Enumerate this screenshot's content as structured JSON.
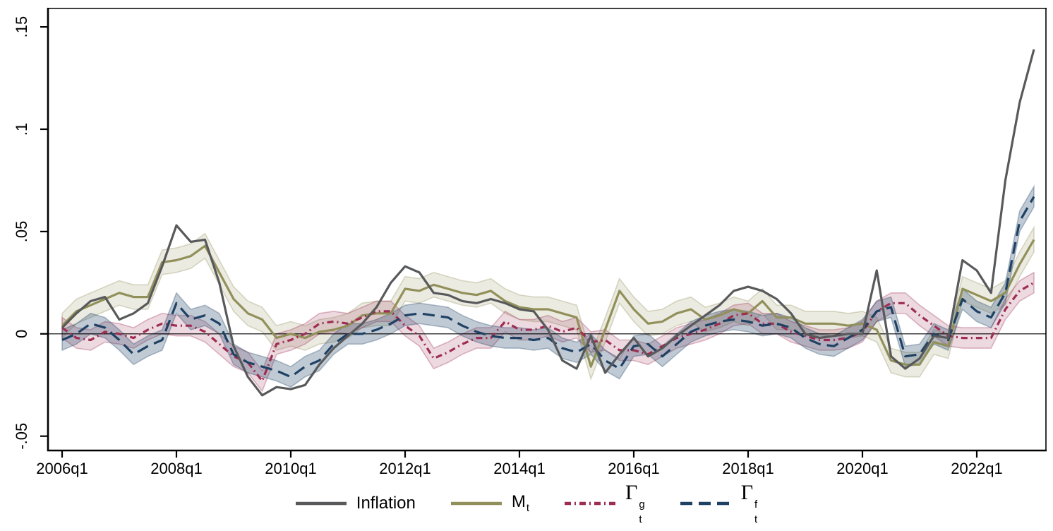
{
  "figure": {
    "background": "#ffffff",
    "border_color": "#000000",
    "zero_line_color": "#000000"
  },
  "chart_data": {
    "type": "line",
    "title": "",
    "xlabel": "",
    "ylabel": "",
    "x_unit": "quarterly",
    "x_start": "2006q1",
    "x_end": "2023q1",
    "x_ticks": [
      {
        "label": "2006q1",
        "q": 0
      },
      {
        "label": "2008q1",
        "q": 8
      },
      {
        "label": "2010q1",
        "q": 16
      },
      {
        "label": "2012q1",
        "q": 24
      },
      {
        "label": "2014q1",
        "q": 32
      },
      {
        "label": "2016q1",
        "q": 40
      },
      {
        "label": "2018q1",
        "q": 48
      },
      {
        "label": "2020q1",
        "q": 56
      },
      {
        "label": "2022q1",
        "q": 64
      }
    ],
    "y_ticks": [
      {
        "value": -0.05,
        "label": "-.05"
      },
      {
        "value": 0,
        "label": "0"
      },
      {
        "value": 0.05,
        "label": ".05"
      },
      {
        "value": 0.1,
        "label": ".1"
      },
      {
        "value": 0.15,
        "label": ".15"
      }
    ],
    "ylim": [
      -0.057,
      0.159
    ],
    "zero_line": true,
    "grid": false,
    "legend_position": "bottom",
    "draw_order": [
      1,
      2,
      3,
      0
    ],
    "series": [
      {
        "name": "inflation",
        "label": {
          "text": "Inflation"
        },
        "color": "#58595b",
        "dash": "solid",
        "band_halfwidth": null,
        "values": [
          0.003,
          0.01,
          0.016,
          0.018,
          0.007,
          0.01,
          0.015,
          0.033,
          0.053,
          0.045,
          0.046,
          0.025,
          -0.006,
          -0.021,
          -0.03,
          -0.026,
          -0.027,
          -0.025,
          -0.015,
          -0.007,
          -0.001,
          0.005,
          0.013,
          0.025,
          0.033,
          0.03,
          0.02,
          0.019,
          0.016,
          0.015,
          0.017,
          0.015,
          0.012,
          0.011,
          0.002,
          -0.013,
          -0.017,
          -0.001,
          -0.019,
          -0.01,
          -0.002,
          -0.011,
          -0.007,
          -0.001,
          0.004,
          0.009,
          0.014,
          0.021,
          0.023,
          0.021,
          0.017,
          0.01,
          0.0,
          -0.002,
          -0.001,
          0.0,
          0.0,
          0.031,
          -0.011,
          -0.017,
          -0.012,
          -0.001,
          -0.002,
          0.036,
          0.031,
          0.02,
          0.075,
          0.113,
          0.139
        ]
      },
      {
        "name": "m_t",
        "label": {
          "base": "M",
          "sub": "t"
        },
        "color": "#92905a",
        "dash": "solid",
        "band_halfwidth": 0.006,
        "band_color": "#92905a",
        "band_opacity": 0.18,
        "values": [
          0.004,
          0.011,
          0.014,
          0.017,
          0.02,
          0.018,
          0.018,
          0.035,
          0.036,
          0.038,
          0.043,
          0.03,
          0.017,
          0.01,
          0.007,
          -0.002,
          0.0,
          -0.002,
          0.001,
          0.002,
          0.004,
          0.009,
          0.01,
          0.01,
          0.022,
          0.021,
          0.024,
          0.022,
          0.02,
          0.019,
          0.021,
          0.016,
          0.013,
          0.012,
          0.012,
          0.01,
          0.008,
          -0.016,
          0.002,
          0.021,
          0.012,
          0.005,
          0.006,
          0.01,
          0.012,
          0.007,
          0.009,
          0.012,
          0.01,
          0.016,
          0.008,
          0.008,
          0.005,
          0.005,
          0.005,
          0.004,
          0.005,
          0.002,
          -0.013,
          -0.015,
          -0.015,
          -0.004,
          -0.006,
          0.022,
          0.019,
          0.016,
          0.02,
          0.034,
          0.046
        ]
      },
      {
        "name": "gamma_g",
        "label": {
          "base": "Γ",
          "sub": "t",
          "sup": "g"
        },
        "color": "#9d2d52",
        "dash": "dashdot",
        "band_halfwidth": 0.005,
        "band_color": "#9d2d52",
        "band_opacity": 0.18,
        "values": [
          0.003,
          -0.002,
          -0.003,
          0.001,
          0.0,
          -0.002,
          0.002,
          0.005,
          0.004,
          0.004,
          0.001,
          -0.005,
          -0.011,
          -0.014,
          -0.023,
          -0.005,
          -0.003,
          0.0,
          0.005,
          0.006,
          0.005,
          0.008,
          0.011,
          0.011,
          0.004,
          -0.001,
          -0.012,
          -0.009,
          -0.005,
          -0.002,
          -0.002,
          0.006,
          0.002,
          0.002,
          0.004,
          0.001,
          0.003,
          -0.004,
          -0.003,
          -0.008,
          -0.008,
          -0.01,
          -0.006,
          -0.002,
          0.0,
          0.002,
          0.005,
          0.009,
          0.01,
          0.005,
          0.005,
          0.001,
          -0.001,
          -0.003,
          -0.003,
          -0.002,
          0.001,
          0.011,
          0.015,
          0.015,
          0.009,
          0.004,
          -0.001,
          -0.002,
          -0.002,
          -0.002,
          0.012,
          0.021,
          0.025
        ]
      },
      {
        "name": "gamma_f",
        "label": {
          "base": "Γ",
          "sub": "t",
          "sup": "f"
        },
        "color": "#1e4164",
        "dash": "longdash",
        "band_halfwidth": 0.005,
        "band_color": "#1e4164",
        "band_opacity": 0.28,
        "values": [
          -0.003,
          0.0,
          0.005,
          0.003,
          -0.003,
          -0.01,
          -0.006,
          -0.003,
          0.015,
          0.007,
          0.009,
          0.005,
          -0.01,
          -0.014,
          -0.016,
          -0.018,
          -0.021,
          -0.016,
          -0.013,
          -0.005,
          0.0,
          0.0,
          0.002,
          0.005,
          0.009,
          0.01,
          0.009,
          0.008,
          0.004,
          0.001,
          -0.001,
          -0.002,
          -0.002,
          -0.003,
          -0.002,
          -0.007,
          -0.009,
          -0.005,
          -0.013,
          -0.017,
          -0.006,
          -0.005,
          -0.011,
          -0.005,
          0.001,
          0.004,
          0.006,
          0.007,
          0.006,
          0.004,
          0.005,
          0.003,
          -0.002,
          -0.005,
          -0.006,
          -0.002,
          0.002,
          0.011,
          0.013,
          -0.011,
          -0.01,
          0.0,
          -0.003,
          0.017,
          0.011,
          0.008,
          0.02,
          0.055,
          0.067
        ]
      }
    ]
  }
}
